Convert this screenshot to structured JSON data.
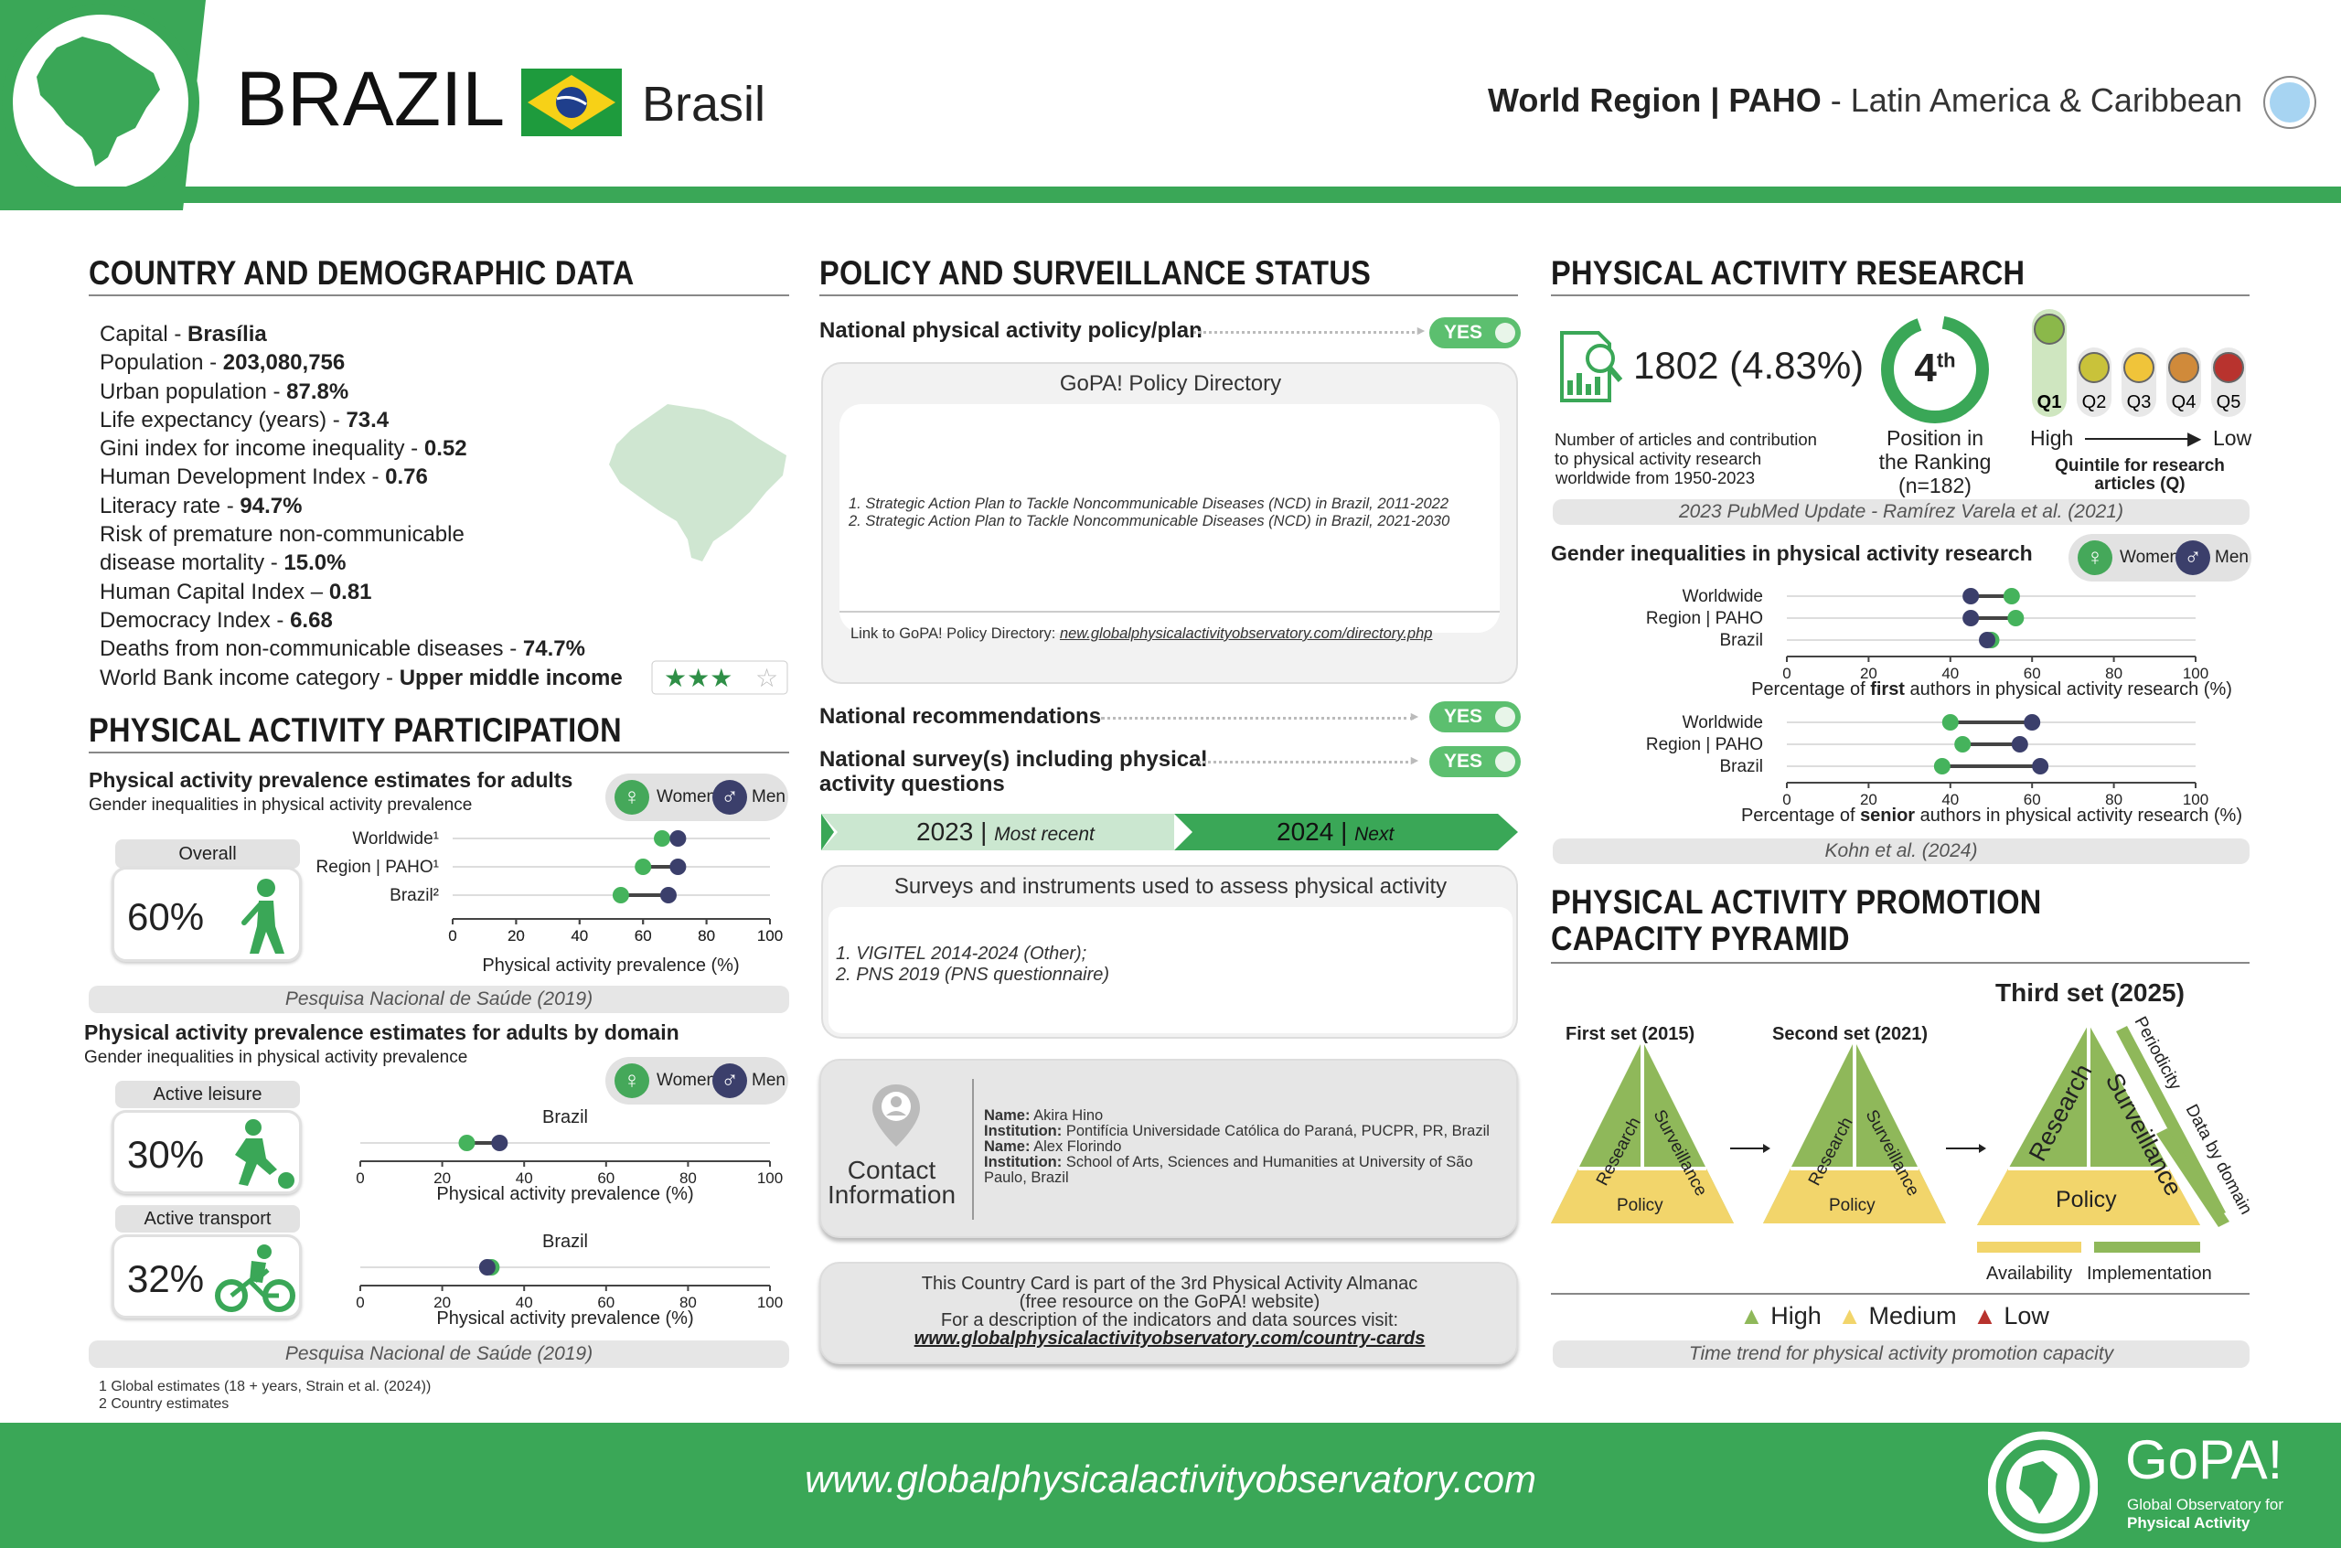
{
  "header": {
    "country": "BRAZIL",
    "native_name": "Brasil",
    "region_bold": "World Region | PAHO",
    "region_rest": " - Latin America & Caribbean"
  },
  "demographics": {
    "title": "COUNTRY AND DEMOGRAPHIC DATA",
    "rows": [
      {
        "label": "Capital - ",
        "value": "Brasília"
      },
      {
        "label": "Population - ",
        "value": "203,080,756"
      },
      {
        "label": "Urban population - ",
        "value": "87.8%"
      },
      {
        "label": "Life expectancy (years) - ",
        "value": "73.4"
      },
      {
        "label": "Gini index for income inequality - ",
        "value": "0.52"
      },
      {
        "label": "Human Development Index - ",
        "value": "0.76"
      },
      {
        "label": "Literacy rate - ",
        "value": "94.7%"
      },
      {
        "label": "Risk of premature non-communicable",
        "value": ""
      },
      {
        "label": "disease mortality - ",
        "value": "15.0%"
      },
      {
        "label": "Human Capital Index – ",
        "value": "0.81"
      },
      {
        "label": "Democracy Index - ",
        "value": "6.68"
      },
      {
        "label": "Deaths from non-communicable diseases - ",
        "value": "74.7%"
      },
      {
        "label": "World Bank income category - ",
        "value": "Upper middle income"
      }
    ],
    "income_stars": 3,
    "income_stars_max": 4
  },
  "participation": {
    "title": "PHYSICAL ACTIVITY PARTICIPATION",
    "sub1_title": "Physical activity prevalence estimates for adults",
    "sub1_sub": "Gender inequalities in physical activity prevalence",
    "women": "Women",
    "men": "Men",
    "overall_label": "Overall",
    "overall_value": "60%",
    "source1": "Pesquisa Nacional de Saúde (2019)",
    "sub2_title": "Physical activity prevalence estimates for adults by domain",
    "sub2_sub": "Gender inequalities in physical activity prevalence",
    "leisure_label": "Active leisure",
    "leisure_value": "30%",
    "transport_label": "Active transport",
    "transport_value": "32%",
    "source2": "Pesquisa Nacional de Saúde (2019)",
    "footnote1": "1 Global estimates (18 + years, Strain et al. (2024))",
    "footnote2": "2 Country estimates"
  },
  "policy": {
    "title": "POLICY AND SURVEILLANCE STATUS",
    "policy_label": "National physical activity policy/plan",
    "yes": "YES",
    "directory_title": "GoPA! Policy Directory",
    "items": [
      "1. Strategic Action Plan to Tackle Noncommunicable Diseases (NCD) in Brazil, 2011-2022",
      "2. Strategic Action Plan to Tackle Noncommunicable Diseases (NCD) in Brazil, 2021-2030"
    ],
    "link_prefix": "Link to GoPA! Policy Directory: ",
    "link": "new.globalphysicalactivityobservatory.com/directory.php",
    "recommendations_label": "National recommendations",
    "survey_label_1": "National survey(s) including physical",
    "survey_label_2": "activity questions",
    "recent_year": "2023",
    "recent_label": "Most recent",
    "next_year": "2024",
    "next_label": "Next",
    "surveys_title": "Surveys and instruments used to assess physical activity",
    "surveys": [
      "1. VIGITEL 2014-2024 (Other);",
      "2. PNS 2019 (PNS questionnaire)"
    ],
    "contact_label_1": "Contact",
    "contact_label_2": "Information",
    "contacts": [
      {
        "k": "Name:",
        "v": " Akira Hino"
      },
      {
        "k": "Institution:",
        "v": " Pontifícia Universidade Católica do Paraná, PUCPR, PR, Brazil"
      },
      {
        "k": "Name:",
        "v": " Alex Florindo"
      },
      {
        "k": "Institution:",
        "v": " School of Arts, Sciences and Humanities at University of São"
      },
      {
        "k": "",
        "v": "Paulo, Brazil"
      }
    ],
    "almanac_1": "This Country Card is part of the 3rd Physical Activity Almanac",
    "almanac_2": "(free resource on the GoPA! website)",
    "almanac_3": "For a description of the indicators and data sources visit:",
    "almanac_link": "www.globalphysicalactivityobservatory.com/country-cards"
  },
  "research": {
    "title": "PHYSICAL ACTIVITY RESEARCH",
    "articles": "1802 (4.83%)",
    "articles_desc_1": "Number of articles and contribution",
    "articles_desc_2": "to physical activity research",
    "articles_desc_3": "worldwide from 1950-2023",
    "rank": "4",
    "rank_sup": "th",
    "rank_desc_1": "Position in",
    "rank_desc_2": "the Ranking",
    "rank_desc_3": "(n=182)",
    "quintiles": [
      "Q1",
      "Q2",
      "Q3",
      "Q4",
      "Q5"
    ],
    "quintile_colors": [
      "#8bb84a",
      "#c9c23a",
      "#f0c43a",
      "#d08a3a",
      "#b8332e"
    ],
    "high": "High",
    "low": "Low",
    "quintile_desc_1": "Quintile for research",
    "quintile_desc_2": "articles (Q)",
    "source1": "2023 PubMed Update - Ramírez Varela et al. (2021)",
    "gender_title": "Gender inequalities in physical activity research",
    "women": "Women",
    "men": "Men",
    "first_axis_pre": "Percentage of ",
    "first_axis_bold": "first",
    "first_axis_post": " authors in physical activity research (%)",
    "senior_axis_pre": "Percentage of ",
    "senior_axis_bold": "senior",
    "senior_axis_post": " authors in physical activity research (%)",
    "source2": "Kohn et al. (2024)"
  },
  "pyramid": {
    "title_1": "PHYSICAL ACTIVITY PROMOTION",
    "title_2": "CAPACITY PYRAMID",
    "set1": "First set (2015)",
    "set2": "Second set (2021)",
    "set3": "Third set (2025)",
    "research": "Research",
    "surveillance": "Surveillance",
    "policy": "Policy",
    "periodicity": "Periodicity",
    "data_by_domain": "Data by domain",
    "availability": "Availability",
    "implementation": "Implementation",
    "legend_high": "High",
    "legend_medium": "Medium",
    "legend_low": "Low",
    "caption": "Time trend for physical activity promotion capacity"
  },
  "footer": {
    "url": "www.globalphysicalactivityobservatory.com",
    "logo_text": "GoPA!",
    "logo_sub_1": "Global Observatory for",
    "logo_sub_2": "Physical Activity"
  },
  "chart_data": [
    {
      "type": "dumbbell",
      "title": "Physical activity prevalence estimates for adults",
      "xlabel": "Physical activity prevalence (%)",
      "xlim": [
        0,
        100
      ],
      "categories": [
        "Worldwide¹",
        "Region | PAHO¹",
        "Brazil²"
      ],
      "series": [
        {
          "name": "Women",
          "values": [
            66,
            60,
            53
          ]
        },
        {
          "name": "Men",
          "values": [
            71,
            71,
            68
          ]
        }
      ]
    },
    {
      "type": "dumbbell",
      "title": "Active leisure",
      "xlabel": "Physical activity prevalence (%)",
      "xlim": [
        0,
        100
      ],
      "categories": [
        "Brazil"
      ],
      "series": [
        {
          "name": "Women",
          "values": [
            26
          ]
        },
        {
          "name": "Men",
          "values": [
            34
          ]
        }
      ]
    },
    {
      "type": "dumbbell",
      "title": "Active transport",
      "xlabel": "Physical activity prevalence (%)",
      "xlim": [
        0,
        100
      ],
      "categories": [
        "Brazil"
      ],
      "series": [
        {
          "name": "Women",
          "values": [
            32
          ]
        },
        {
          "name": "Men",
          "values": [
            31
          ]
        }
      ]
    },
    {
      "type": "dumbbell",
      "xlabel": "Percentage of first authors in physical activity research (%)",
      "xlim": [
        0,
        100
      ],
      "categories": [
        "Worldwide",
        "Region | PAHO",
        "Brazil"
      ],
      "series": [
        {
          "name": "Women",
          "values": [
            55,
            56,
            50
          ]
        },
        {
          "name": "Men",
          "values": [
            45,
            45,
            49
          ]
        }
      ]
    },
    {
      "type": "dumbbell",
      "xlabel": "Percentage of senior authors in physical activity research (%)",
      "xlim": [
        0,
        100
      ],
      "categories": [
        "Worldwide",
        "Region | PAHO",
        "Brazil"
      ],
      "series": [
        {
          "name": "Women",
          "values": [
            40,
            43,
            38
          ]
        },
        {
          "name": "Men",
          "values": [
            60,
            57,
            62
          ]
        }
      ]
    }
  ]
}
